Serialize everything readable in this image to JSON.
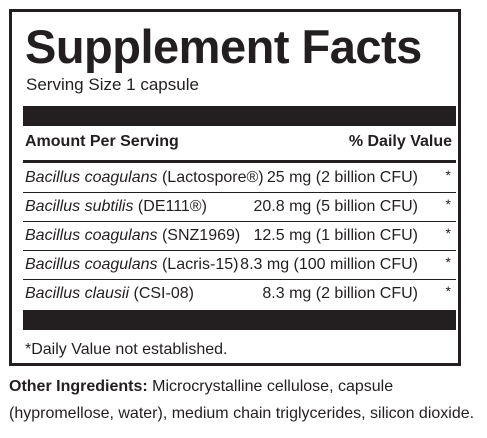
{
  "title": "Supplement Facts",
  "serving_size": "Serving Size 1 capsule",
  "header": {
    "amount_per_serving": "Amount Per Serving",
    "daily_value": "% Daily Value"
  },
  "ingredients": [
    {
      "name": "Bacillus coagulans",
      "strain": " (Lactospore®)",
      "amount": "25 mg (2 billion CFU)",
      "dv": "*"
    },
    {
      "name": "Bacillus subtilis",
      "strain": " (DE111®)",
      "amount": "20.8 mg (5 billion CFU)",
      "dv": "*"
    },
    {
      "name": "Bacillus coagulans",
      "strain": " (SNZ1969)",
      "amount": "12.5 mg (1 billion CFU)",
      "dv": "*"
    },
    {
      "name": "Bacillus coagulans",
      "strain": " (Lacris-15)",
      "amount": "8.3 mg (100 million CFU)",
      "dv": "*"
    },
    {
      "name": "Bacillus clausii",
      "strain": " (CSI-08)",
      "amount": "8.3 mg (2 billion CFU)",
      "dv": "*"
    }
  ],
  "footnote": "*Daily Value not established.",
  "other_ingredients": {
    "label": "Other Ingredients:",
    "text": " Microcrystalline cellulose, capsule (hypromellose, water), medium chain triglycerides, silicon dioxide."
  }
}
